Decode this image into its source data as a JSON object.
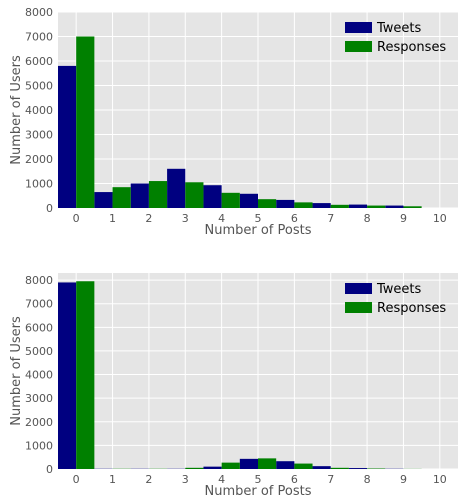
{
  "colors": {
    "tweets": "#000080",
    "responses": "#008000",
    "plot_bg": "#e5e5e5",
    "grid": "#ffffff"
  },
  "chart_data": [
    {
      "type": "bar",
      "xlabel": "Number of Posts",
      "ylabel": "Number of Users",
      "xlim": [
        -0.5,
        10.5
      ],
      "ylim": [
        0,
        8000
      ],
      "x_ticks": [
        "0",
        "1",
        "2",
        "3",
        "4",
        "5",
        "6",
        "7",
        "8",
        "9",
        "10"
      ],
      "y_ticks": [
        "0",
        "1000",
        "2000",
        "3000",
        "4000",
        "5000",
        "6000",
        "7000",
        "8000"
      ],
      "grid": true,
      "legend_position": "top-right",
      "bin_edges": [
        0,
        1,
        2,
        3,
        4,
        5,
        6,
        7,
        8,
        9,
        10
      ],
      "series": [
        {
          "name": "Tweets",
          "values": [
            5800,
            650,
            1000,
            1600,
            930,
            580,
            330,
            200,
            140,
            100
          ]
        },
        {
          "name": "Responses",
          "values": [
            7000,
            850,
            1100,
            1050,
            620,
            360,
            230,
            130,
            100,
            70
          ]
        }
      ]
    },
    {
      "type": "bar",
      "xlabel": "Number of Posts",
      "ylabel": "Number of Users",
      "xlim": [
        -0.5,
        10.5
      ],
      "ylim": [
        0,
        8300
      ],
      "x_ticks": [
        "0",
        "1",
        "2",
        "3",
        "4",
        "5",
        "6",
        "7",
        "8",
        "9",
        "10"
      ],
      "y_ticks": [
        "0",
        "1000",
        "2000",
        "3000",
        "4000",
        "5000",
        "6000",
        "7000",
        "8000"
      ],
      "grid": true,
      "legend_position": "top-right",
      "bin_edges": [
        0,
        1,
        2,
        3,
        4,
        5,
        6,
        7,
        8,
        9,
        10
      ],
      "series": [
        {
          "name": "Tweets",
          "values": [
            7900,
            10,
            10,
            10,
            100,
            430,
            330,
            120,
            40,
            10
          ]
        },
        {
          "name": "Responses",
          "values": [
            7950,
            10,
            10,
            50,
            270,
            450,
            230,
            50,
            20,
            5
          ]
        }
      ]
    }
  ]
}
